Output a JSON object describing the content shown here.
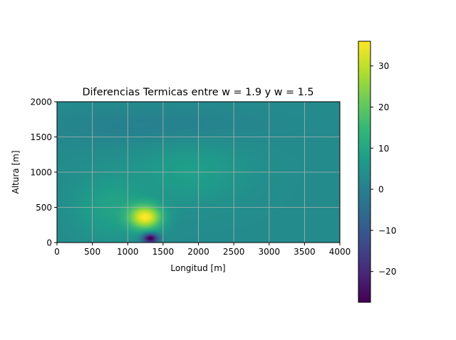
{
  "chart_data": {
    "type": "heatmap",
    "title": "Diferencias Termicas entre w = 1.9 y w = 1.5",
    "xlabel": "Longitud [m]",
    "ylabel": "Altura [m]",
    "xlim": [
      0,
      4000
    ],
    "ylim": [
      0,
      2000
    ],
    "x_ticks": [
      0,
      500,
      1000,
      1500,
      2000,
      2500,
      3000,
      3500,
      4000
    ],
    "y_ticks": [
      0,
      500,
      1000,
      1500,
      2000
    ],
    "grid": true,
    "colormap": "viridis",
    "colorbar": {
      "min": -27.5,
      "max": 36,
      "ticks": [
        -20,
        -10,
        0,
        10,
        20,
        30
      ]
    },
    "features": [
      {
        "x": 1250,
        "y": 360,
        "sx": 230,
        "sy": 170,
        "amp": 31
      },
      {
        "x": 1320,
        "y": 60,
        "sx": 110,
        "sy": 70,
        "amp": -33
      },
      {
        "x": 750,
        "y": 500,
        "sx": 500,
        "sy": 450,
        "amp": 6
      },
      {
        "x": 1900,
        "y": 1000,
        "sx": 800,
        "sy": 450,
        "amp": 5
      },
      {
        "x": 1400,
        "y": 1650,
        "sx": 1500,
        "sy": 250,
        "amp": -3
      }
    ],
    "base_value": 3
  }
}
